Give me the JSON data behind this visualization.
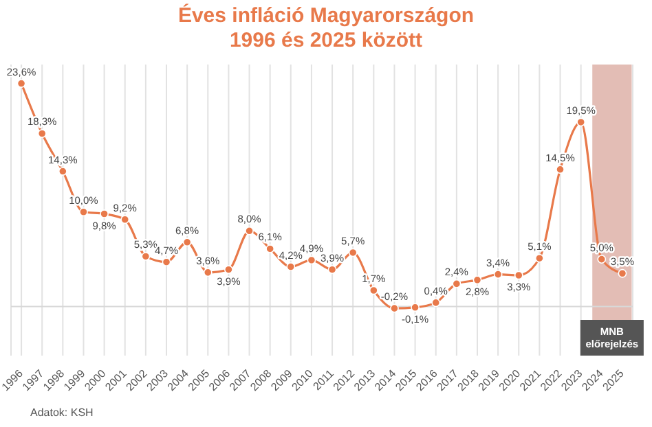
{
  "chart_data": {
    "type": "line",
    "title": "Éves infláció Magyarországon\n1996 és 2025 között",
    "categories": [
      "1996",
      "1997",
      "1998",
      "1999",
      "2000",
      "2001",
      "2002",
      "2003",
      "2004",
      "2005",
      "2006",
      "2007",
      "2008",
      "2009",
      "2010",
      "2011",
      "2012",
      "2013",
      "2014",
      "2015",
      "2016",
      "2017",
      "2018",
      "2019",
      "2020",
      "2021",
      "2022",
      "2023",
      "2024",
      "2025"
    ],
    "series": [
      {
        "color": "#e8794a",
        "values": [
          23.6,
          18.3,
          14.3,
          10.0,
          9.8,
          9.2,
          5.3,
          4.7,
          6.8,
          3.6,
          3.9,
          8.0,
          6.1,
          4.2,
          4.9,
          3.9,
          5.7,
          1.7,
          -0.2,
          -0.1,
          0.4,
          2.4,
          2.8,
          3.4,
          3.3,
          5.1,
          14.5,
          19.5,
          5.0,
          3.5
        ],
        "value_labels": [
          "23,6%",
          "18,3%",
          "14,3%",
          "10,0%",
          "9,8%",
          "9,2%",
          "5,3%",
          "4,7%",
          "6,8%",
          "3,6%",
          "3,9%",
          "8,0%",
          "6,1%",
          "4,2%",
          "4,9%",
          "3,9%",
          "5,7%",
          "1,7%",
          "-0,2%",
          "-0,1%",
          "0,4%",
          "2,4%",
          "2,8%",
          "3,4%",
          "3,3%",
          "5,1%",
          "14,5%",
          "19,5%",
          "5,0%",
          "3,5%"
        ]
      }
    ],
    "marker": "circle",
    "grid": "x",
    "tick_labels": "x",
    "ref_lines": [
      {
        "axis": "y",
        "value": 0,
        "color": "#d8d8d8"
      }
    ],
    "bands": [
      {
        "axis": "x",
        "from": "2024",
        "to": "2025",
        "label": "MNB előrejelzés",
        "color": "#e3bdb5"
      }
    ],
    "annotations": [
      "Adatok: KSH"
    ]
  }
}
